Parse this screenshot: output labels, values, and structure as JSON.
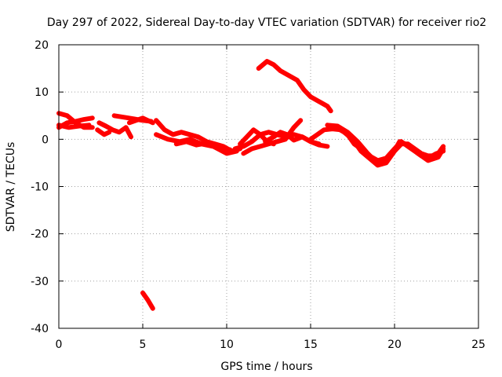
{
  "chart_data": {
    "type": "scatter",
    "title": "Day 297 of 2022, Sidereal Day-to-day VTEC variation (SDTVAR) for receiver rio2",
    "xlabel": "GPS time / hours",
    "ylabel": "SDTVAR / TECUs",
    "xlim": [
      0,
      25
    ],
    "ylim": [
      -40,
      20
    ],
    "xticks": [
      0,
      5,
      10,
      15,
      20,
      25
    ],
    "yticks": [
      -40,
      -30,
      -20,
      -10,
      0,
      10,
      20
    ],
    "grid": true,
    "series_color": "#ff0000",
    "segments": [
      [
        [
          0.0,
          5.5
        ],
        [
          0.5,
          5.0
        ],
        [
          1.0,
          3.5
        ],
        [
          1.5,
          2.5
        ],
        [
          2.0,
          2.5
        ]
      ],
      [
        [
          0.0,
          2.5
        ],
        [
          0.5,
          3.5
        ],
        [
          1.0,
          3.8
        ],
        [
          1.5,
          4.2
        ],
        [
          2.0,
          4.5
        ]
      ],
      [
        [
          0.0,
          3.0
        ],
        [
          0.6,
          2.5
        ],
        [
          1.2,
          2.8
        ],
        [
          1.8,
          3.0
        ]
      ],
      [
        [
          2.4,
          3.5
        ],
        [
          2.8,
          2.8
        ],
        [
          3.2,
          2.0
        ],
        [
          3.6,
          1.5
        ],
        [
          4.0,
          2.5
        ],
        [
          4.3,
          0.5
        ]
      ],
      [
        [
          2.3,
          2.0
        ],
        [
          2.7,
          1.0
        ],
        [
          3.0,
          1.5
        ]
      ],
      [
        [
          3.3,
          5.0
        ],
        [
          4.0,
          4.6
        ],
        [
          4.5,
          4.3
        ],
        [
          5.0,
          4.0
        ],
        [
          5.5,
          3.8
        ]
      ],
      [
        [
          4.2,
          3.5
        ],
        [
          5.0,
          4.5
        ],
        [
          5.6,
          3.5
        ]
      ],
      [
        [
          5.0,
          -32.5
        ],
        [
          5.3,
          -34.0
        ],
        [
          5.6,
          -35.8
        ]
      ],
      [
        [
          5.8,
          4.0
        ],
        [
          6.3,
          2.0
        ],
        [
          6.8,
          1.0
        ],
        [
          7.3,
          1.5
        ],
        [
          7.8,
          1.0
        ],
        [
          8.3,
          0.5
        ],
        [
          8.8,
          -0.5
        ],
        [
          9.3,
          -1.0
        ],
        [
          9.8,
          -1.5
        ],
        [
          10.3,
          -2.5
        ],
        [
          10.8,
          -2.0
        ]
      ],
      [
        [
          5.8,
          1.0
        ],
        [
          6.5,
          0.0
        ],
        [
          7.2,
          -0.5
        ],
        [
          7.8,
          0.0
        ],
        [
          8.5,
          -1.0
        ],
        [
          9.2,
          -1.5
        ],
        [
          10.0,
          -3.0
        ],
        [
          10.6,
          -2.5
        ]
      ],
      [
        [
          7.0,
          -1.0
        ],
        [
          7.6,
          -0.5
        ],
        [
          8.2,
          -1.2
        ],
        [
          8.8,
          -0.8
        ],
        [
          9.5,
          -1.8
        ],
        [
          10.2,
          -2.2
        ]
      ],
      [
        [
          10.5,
          -2.0
        ],
        [
          11.0,
          -1.5
        ],
        [
          11.5,
          -0.5
        ],
        [
          12.0,
          1.0
        ],
        [
          12.5,
          1.5
        ],
        [
          13.0,
          1.0
        ],
        [
          13.5,
          0.5
        ],
        [
          14.0,
          1.0
        ],
        [
          14.5,
          0.5
        ],
        [
          15.0,
          -0.5
        ],
        [
          15.5,
          -1.0
        ]
      ],
      [
        [
          10.8,
          -1.0
        ],
        [
          11.2,
          0.5
        ],
        [
          11.6,
          2.0
        ],
        [
          12.0,
          1.0
        ],
        [
          12.4,
          -0.5
        ],
        [
          12.8,
          -1.0
        ]
      ],
      [
        [
          11.0,
          -3.0
        ],
        [
          11.5,
          -2.0
        ],
        [
          12.0,
          -1.5
        ],
        [
          12.5,
          -1.0
        ],
        [
          13.0,
          -0.5
        ],
        [
          13.5,
          0.0
        ],
        [
          14.0,
          2.5
        ],
        [
          14.4,
          4.0
        ]
      ],
      [
        [
          12.3,
          -0.5
        ],
        [
          12.8,
          0.5
        ],
        [
          13.2,
          1.5
        ],
        [
          13.6,
          1.0
        ],
        [
          14.0,
          -0.2
        ],
        [
          14.5,
          0.5
        ],
        [
          15.0,
          -0.5
        ],
        [
          15.5,
          -1.2
        ],
        [
          16.0,
          -1.5
        ]
      ],
      [
        [
          11.9,
          15.0
        ],
        [
          12.4,
          16.5
        ],
        [
          12.8,
          15.8
        ],
        [
          13.2,
          14.5
        ],
        [
          13.7,
          13.5
        ],
        [
          14.2,
          12.5
        ],
        [
          14.6,
          10.5
        ],
        [
          15.0,
          9.0
        ],
        [
          15.5,
          8.0
        ],
        [
          16.0,
          7.0
        ],
        [
          16.2,
          6.0
        ]
      ],
      [
        [
          15.0,
          0.0
        ],
        [
          15.4,
          1.0
        ],
        [
          15.8,
          2.0
        ],
        [
          16.3,
          2.2
        ],
        [
          16.8,
          2.0
        ],
        [
          17.2,
          1.0
        ],
        [
          17.6,
          -1.0
        ],
        [
          18.0,
          -2.0
        ],
        [
          18.5,
          -3.5
        ],
        [
          19.0,
          -4.5
        ],
        [
          19.5,
          -4.0
        ],
        [
          20.0,
          -2.0
        ],
        [
          20.4,
          -0.5
        ],
        [
          20.8,
          -1.5
        ],
        [
          21.2,
          -2.5
        ],
        [
          21.6,
          -3.5
        ],
        [
          22.0,
          -4.0
        ],
        [
          22.5,
          -3.0
        ],
        [
          22.9,
          -2.5
        ]
      ],
      [
        [
          16.5,
          2.5
        ],
        [
          17.0,
          1.5
        ],
        [
          17.5,
          0.0
        ],
        [
          18.0,
          -2.5
        ],
        [
          18.5,
          -4.0
        ],
        [
          19.0,
          -5.5
        ],
        [
          19.5,
          -5.0
        ],
        [
          20.0,
          -2.5
        ],
        [
          20.4,
          -1.0
        ],
        [
          20.8,
          -1.0
        ],
        [
          21.2,
          -2.0
        ],
        [
          21.6,
          -3.0
        ],
        [
          22.0,
          -3.5
        ],
        [
          22.5,
          -3.5
        ],
        [
          22.9,
          -1.5
        ]
      ],
      [
        [
          16.0,
          3.0
        ],
        [
          16.6,
          2.8
        ],
        [
          17.2,
          1.5
        ],
        [
          17.8,
          -0.5
        ],
        [
          18.4,
          -3.0
        ],
        [
          18.9,
          -4.8
        ],
        [
          19.4,
          -4.5
        ],
        [
          19.9,
          -3.0
        ],
        [
          20.3,
          -0.5
        ],
        [
          20.8,
          -1.2
        ],
        [
          21.4,
          -3.0
        ],
        [
          22.0,
          -4.5
        ],
        [
          22.6,
          -3.8
        ],
        [
          22.9,
          -2.0
        ]
      ]
    ]
  }
}
